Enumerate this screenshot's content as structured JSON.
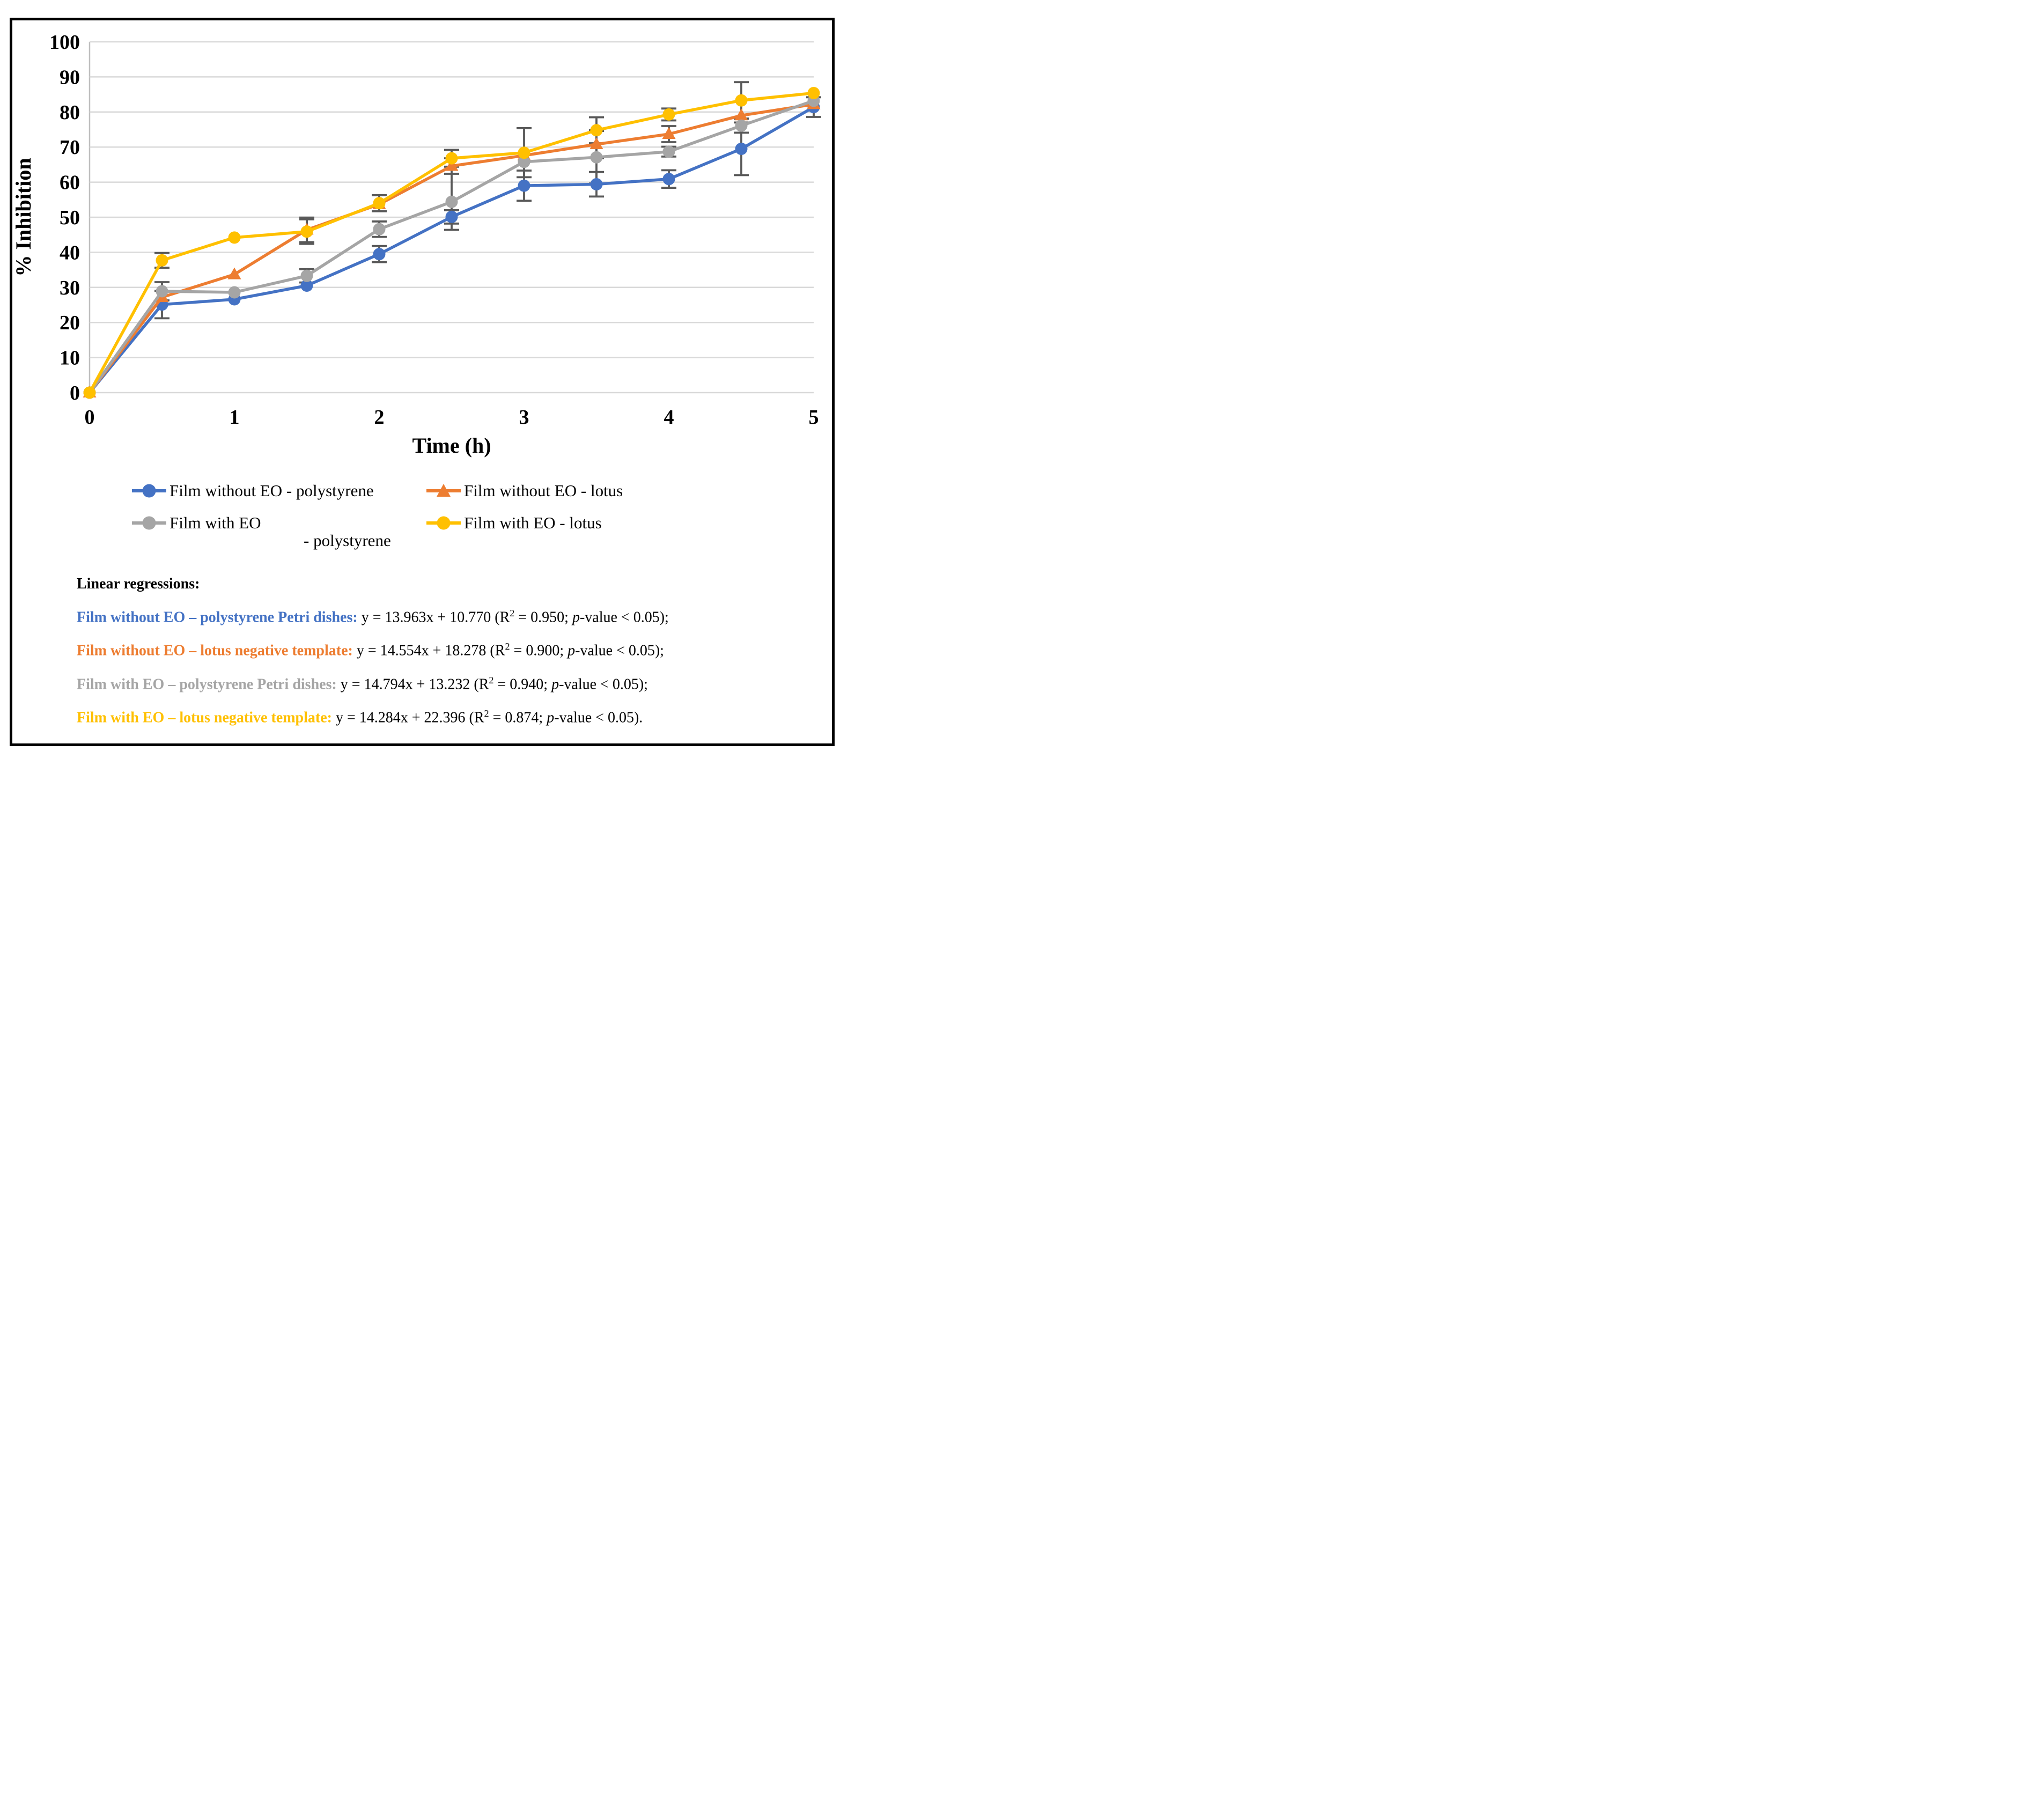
{
  "figure": {
    "background": "#ffffff",
    "border_color": "#000000"
  },
  "chart_data": {
    "type": "line",
    "title": "",
    "xlabel": "Time (h)",
    "ylabel": "% Inhibition",
    "x": [
      0,
      0.5,
      1,
      1.5,
      2,
      2.5,
      3,
      3.5,
      4,
      4.5,
      5
    ],
    "x_ticks": [
      0,
      1,
      2,
      3,
      4,
      5
    ],
    "y_ticks": [
      0,
      10,
      20,
      30,
      40,
      50,
      60,
      70,
      80,
      90,
      100
    ],
    "xlim": [
      0,
      5
    ],
    "ylim": [
      0,
      100
    ],
    "grid": "horizontal",
    "grid_color": "#d9d9d9",
    "axis_line_color": "#bfbfbf",
    "error_bar_color": "#595959",
    "legend_position": "bottom",
    "series": [
      {
        "name": "Film without EO - polystyrene",
        "legend_line1": "Film without EO - polystyrene",
        "legend_line2": "",
        "color": "#4472C4",
        "marker": "circle",
        "values": [
          0,
          25.1,
          26.6,
          30.5,
          39.5,
          50.1,
          59.0,
          59.4,
          60.9,
          69.5,
          81.4
        ],
        "errors": [
          0,
          3.9,
          0,
          0,
          2.3,
          1.9,
          4.3,
          3.5,
          2.5,
          7.5,
          2.8
        ]
      },
      {
        "name": "Film without EO - lotus",
        "legend_line1": "Film without EO - lotus",
        "legend_line2": "",
        "color": "#ED7D31",
        "marker": "triangle",
        "values": [
          0,
          27.2,
          33.7,
          46.4,
          53.7,
          64.6,
          67.6,
          70.8,
          73.7,
          79.0,
          82.2
        ],
        "errors": [
          0,
          0,
          0,
          3.5,
          0,
          2.2,
          0,
          4.0,
          2.3,
          0,
          0
        ]
      },
      {
        "name": "Film with EO - polystyrene",
        "legend_line1": "Film with EO",
        "legend_line2": "- polystyrene",
        "color": "#A5A5A5",
        "marker": "circle",
        "values": [
          0,
          28.9,
          28.6,
          33.3,
          46.6,
          54.4,
          65.8,
          67.1,
          68.7,
          76.1,
          83.2
        ],
        "errors": [
          0,
          2.6,
          0,
          1.9,
          2.2,
          8.0,
          0,
          7.5,
          1.4,
          2.0,
          0
        ]
      },
      {
        "name": "Film with EO - lotus",
        "legend_line1": "Film with EO - lotus",
        "legend_line2": "",
        "color": "#FFC000",
        "marker": "circle",
        "values": [
          0,
          37.7,
          44.2,
          45.9,
          54.0,
          66.8,
          68.4,
          74.8,
          79.3,
          83.3,
          85.4
        ],
        "errors": [
          0,
          2.1,
          0,
          3.5,
          2.3,
          2.4,
          7.0,
          3.7,
          1.7,
          5.2,
          0
        ]
      }
    ]
  },
  "regressions": {
    "heading": "Linear regressions:",
    "items": [
      {
        "label": "Film without EO – polystyrene Petri dishes:",
        "color": "#4472C4",
        "slope": "13.963",
        "intercept": "10.770",
        "r2": "0.950",
        "p_value": "< 0.05",
        "end": ";"
      },
      {
        "label": "Film without EO – lotus negative template:",
        "color": "#ED7D31",
        "slope": "14.554",
        "intercept": "18.278",
        "r2": "0.900",
        "p_value": "< 0.05",
        "end": ";"
      },
      {
        "label": "Film with EO – polystyrene Petri dishes:",
        "color": "#A5A5A5",
        "slope": "14.794",
        "intercept": "13.232",
        "r2": "0.940",
        "p_value": "< 0.05",
        "end": ";"
      },
      {
        "label": "Film with EO – lotus negative template:",
        "color": "#FFC000",
        "slope": "14.284",
        "intercept": "22.396",
        "r2": "0.874",
        "p_value": "< 0.05",
        "end": "."
      }
    ]
  }
}
